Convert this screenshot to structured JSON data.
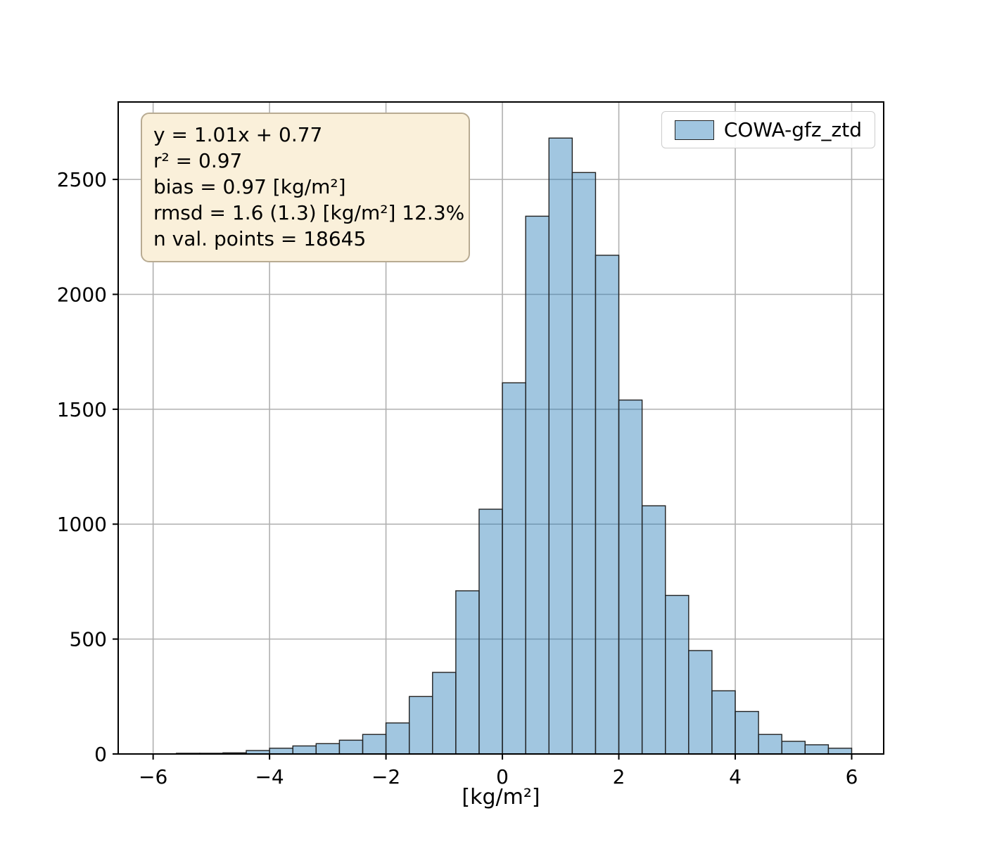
{
  "chart_data": {
    "type": "bar",
    "title": "",
    "xlabel": "[kg/m²]",
    "ylabel": "",
    "xlim": [
      -6.6,
      6.55
    ],
    "ylim": [
      0,
      2837
    ],
    "xticks": [
      -6,
      -4,
      -2,
      0,
      2,
      4,
      6
    ],
    "yticks": [
      0,
      500,
      1000,
      1500,
      2000,
      2500
    ],
    "grid": true,
    "grid_color": "#b0b0b0",
    "bar_fill": "rgba(31,119,180,0.42)",
    "bar_edge": "#222222",
    "bin_start": -5.6,
    "bin_width": 0.4,
    "values": [
      3,
      3,
      5,
      15,
      25,
      35,
      45,
      60,
      85,
      135,
      250,
      355,
      710,
      1065,
      1615,
      2340,
      2680,
      2530,
      2170,
      1540,
      1080,
      690,
      450,
      275,
      185,
      85,
      55,
      40,
      25
    ],
    "legend": {
      "position": "upper right",
      "label": "COWA-gfz_ztd"
    }
  },
  "stats_box": {
    "background": "#faf0da",
    "border": "#b8ab92",
    "lines": [
      "y = 1.01x + 0.77",
      "r² = 0.97",
      "bias = 0.97 [kg/m²]",
      "rmsd = 1.6 (1.3) [kg/m²] 12.3%",
      "n val. points = 18645"
    ]
  }
}
